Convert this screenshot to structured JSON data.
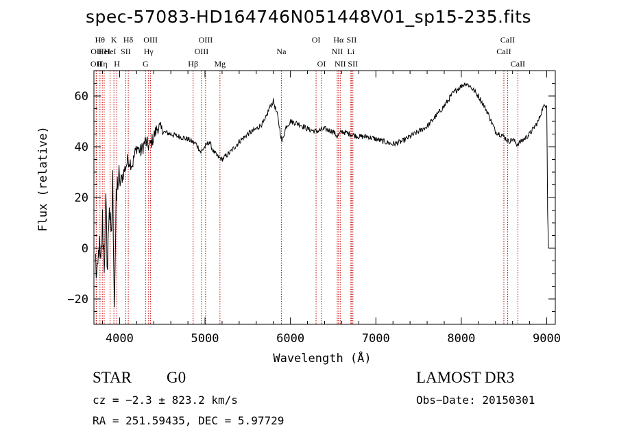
{
  "chart_data": {
    "type": "line",
    "title": "spec-57083-HD164746N051448V01_sp15-235.fits",
    "xlabel": "Wavelength (Å)",
    "ylabel": "Flux (relative)",
    "xlim": [
      3700,
      9100
    ],
    "ylim": [
      -30,
      70
    ],
    "xticks": [
      4000,
      5000,
      6000,
      7000,
      8000,
      9000
    ],
    "yticks": [
      -20,
      0,
      20,
      40,
      60
    ],
    "grid": false,
    "line_color": "#000000",
    "marker_color": "#cc0000",
    "series": [
      {
        "x": [
          3720,
          3740,
          3760,
          3780,
          3800,
          3820,
          3840,
          3860,
          3880,
          3900,
          3920,
          3940,
          3960,
          3980,
          4000,
          4050,
          4100,
          4150,
          4200,
          4250,
          4300,
          4350,
          4400,
          4450,
          4500,
          4600,
          4700,
          4800,
          4850,
          4900,
          4950,
          5000,
          5050,
          5100,
          5150,
          5200,
          5300,
          5400,
          5500,
          5600,
          5700,
          5750,
          5800,
          5850,
          5900,
          5950,
          6000,
          6100,
          6200,
          6300,
          6400,
          6500,
          6550,
          6600,
          6700,
          6800,
          6900,
          7000,
          7100,
          7200,
          7300,
          7400,
          7500,
          7600,
          7700,
          7800,
          7900,
          8000,
          8050,
          8100,
          8150,
          8200,
          8300,
          8400,
          8500,
          8550,
          8600,
          8650,
          8700,
          8800,
          8900,
          8950,
          9000,
          9010,
          9020
        ],
        "values": [
          -5,
          -15,
          2,
          -10,
          10,
          -5,
          15,
          -8,
          20,
          0,
          25,
          -20,
          15,
          28,
          25,
          30,
          35,
          33,
          40,
          38,
          42,
          40,
          44,
          48,
          46,
          45,
          44,
          43,
          42,
          41,
          38,
          40,
          42,
          38,
          36,
          35,
          38,
          42,
          45,
          47,
          50,
          55,
          58,
          52,
          42,
          48,
          50,
          49,
          47,
          46,
          47,
          46,
          44,
          46,
          45,
          44,
          44,
          43,
          42,
          41,
          42,
          44,
          46,
          48,
          52,
          56,
          61,
          64,
          65,
          64,
          62,
          60,
          54,
          46,
          44,
          42,
          43,
          41,
          42,
          45,
          50,
          55,
          57,
          15,
          0
        ]
      }
    ],
    "line_markers": [
      {
        "x": 3726,
        "label": "OII",
        "row": 3
      },
      {
        "x": 3729,
        "label": "OII",
        "row": 2
      },
      {
        "x": 3771,
        "label": "Hθ",
        "row": 1
      },
      {
        "x": 3798,
        "label": "Hη",
        "row": 3
      },
      {
        "x": 3820,
        "label": "HeI",
        "row": 2
      },
      {
        "x": 3889,
        "label": "HeI",
        "row": 2
      },
      {
        "x": 3934,
        "label": "K",
        "row": 1
      },
      {
        "x": 3969,
        "label": "H",
        "row": 3
      },
      {
        "x": 4072,
        "label": "SII",
        "row": 2
      },
      {
        "x": 4102,
        "label": "Hδ",
        "row": 1
      },
      {
        "x": 4304,
        "label": "G",
        "row": 3
      },
      {
        "x": 4340,
        "label": "Hγ",
        "row": 2
      },
      {
        "x": 4363,
        "label": "OIII",
        "row": 1
      },
      {
        "x": 4861,
        "label": "Hβ",
        "row": 3
      },
      {
        "x": 4959,
        "label": "OIII",
        "row": 2
      },
      {
        "x": 5007,
        "label": "OIII",
        "row": 1
      },
      {
        "x": 5175,
        "label": "Mg",
        "row": 3
      },
      {
        "x": 5894,
        "label": "Na",
        "row": 2
      },
      {
        "x": 6300,
        "label": "OI",
        "row": 1
      },
      {
        "x": 6364,
        "label": "OI",
        "row": 3
      },
      {
        "x": 6548,
        "label": "NII",
        "row": 2
      },
      {
        "x": 6563,
        "label": "Hα",
        "row": 1
      },
      {
        "x": 6583,
        "label": "NII",
        "row": 3
      },
      {
        "x": 6707,
        "label": "Li",
        "row": 2
      },
      {
        "x": 6716,
        "label": "SII",
        "row": 1
      },
      {
        "x": 6731,
        "label": "SII",
        "row": 3
      },
      {
        "x": 8498,
        "label": "CaII",
        "row": 2
      },
      {
        "x": 8542,
        "label": "CaII",
        "row": 1
      },
      {
        "x": 8662,
        "label": "CaII",
        "row": 3
      }
    ]
  },
  "info": {
    "object_class": "STAR",
    "subclass": "G0",
    "survey": "LAMOST DR3",
    "cz": "cz = −2.3 ± 823.2 km/s",
    "obs_date": "Obs−Date: 20150301",
    "coords": "RA = 251.59435, DEC =   5.97729"
  }
}
